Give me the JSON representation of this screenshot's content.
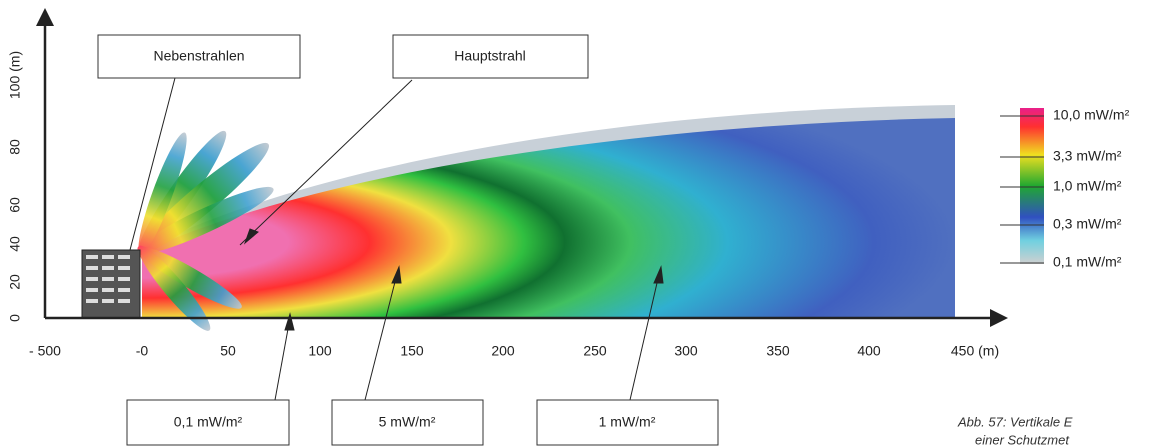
{
  "axes": {
    "x_ticks": [
      "- 500",
      "-0",
      "50",
      "100",
      "150",
      "200",
      "250",
      "300",
      "350",
      "400",
      "450 (m)"
    ],
    "y_ticks": [
      "0",
      "20",
      "40",
      "60",
      "80",
      "100 (m)"
    ]
  },
  "callouts": {
    "top": [
      "Nebenstrahlen",
      "Hauptstrahl"
    ],
    "bottom": [
      "0,1 mW/m²",
      "5 mW/m²",
      "1 mW/m²"
    ]
  },
  "legend": [
    "10,0 mW/m²",
    "3,3 mW/m²",
    "1,0 mW/m²",
    "0,3 mW/m²",
    "0,1 mW/m²"
  ],
  "caption": [
    "Abb. 57: Vertikale E",
    "einer Schutzmet"
  ]
}
